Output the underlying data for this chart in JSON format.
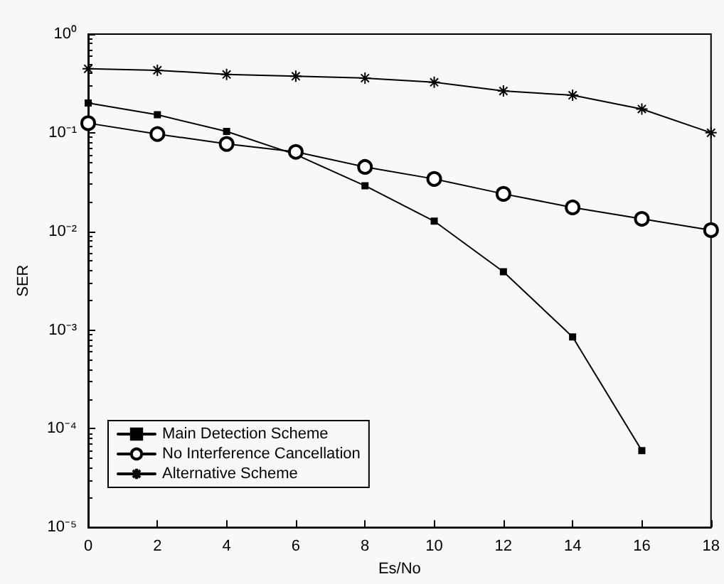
{
  "chart_data": {
    "type": "line",
    "xlabel": "Es/No",
    "ylabel": "SER",
    "x": [
      0,
      2,
      4,
      6,
      8,
      10,
      12,
      14,
      16,
      18
    ],
    "series": [
      {
        "name": "Main Detection Scheme",
        "color": "#000000",
        "marker": "square",
        "values": [
          0.2,
          0.152,
          0.103,
          0.06,
          0.029,
          0.0127,
          0.0039,
          0.00085,
          6e-05,
          null
        ]
      },
      {
        "name": "No Interference Cancellation",
        "color": "#000000",
        "marker": "circle",
        "values": [
          0.125,
          0.097,
          0.077,
          0.064,
          0.045,
          0.034,
          0.024,
          0.0175,
          0.0134,
          0.0103
        ]
      },
      {
        "name": "Alternative Scheme",
        "color": "#000000",
        "marker": "cross",
        "values": [
          0.445,
          0.43,
          0.39,
          0.374,
          0.358,
          0.325,
          0.265,
          0.24,
          0.174,
          0.1
        ]
      }
    ],
    "xlim": [
      0,
      18
    ],
    "xticks": [
      0,
      2,
      4,
      6,
      8,
      10,
      12,
      14,
      16,
      18
    ],
    "ylim": [
      1e-05,
      1
    ],
    "log": true,
    "yticks": [
      {
        "value": 1,
        "label": "10⁰"
      },
      {
        "value": 0.1,
        "label": "10⁻¹"
      },
      {
        "value": 0.01,
        "label": "10⁻²"
      },
      {
        "value": 0.001,
        "label": "10⁻³"
      },
      {
        "value": 0.0001,
        "label": "10⁻⁴"
      },
      {
        "value": 1e-05,
        "label": "10⁻⁵"
      }
    ],
    "grid": false,
    "legend": "bottom left",
    "line_style": "solid"
  }
}
